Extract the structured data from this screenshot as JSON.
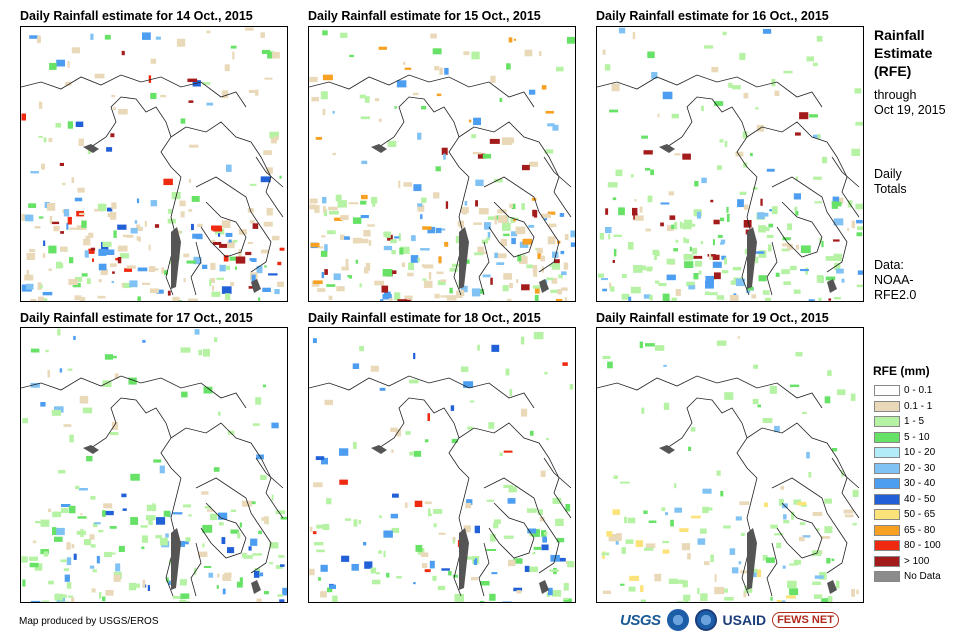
{
  "panels": [
    {
      "title": "Daily Rainfall estimate for 14 Oct., 2015"
    },
    {
      "title": "Daily Rainfall estimate for 15 Oct., 2015"
    },
    {
      "title": "Daily Rainfall estimate for 16 Oct., 2015"
    },
    {
      "title": "Daily Rainfall estimate for 17 Oct., 2015"
    },
    {
      "title": "Daily Rainfall estimate for 18 Oct., 2015"
    },
    {
      "title": "Daily Rainfall estimate for 19 Oct., 2015"
    }
  ],
  "sidebar": {
    "title_line1": "Rainfall",
    "title_line2": "Estimate",
    "title_line3": "(RFE)",
    "through_line1": "through",
    "through_line2": "Oct 19, 2015",
    "daily_line1": "Daily",
    "daily_line2": "Totals",
    "data_line1": "Data:",
    "data_line2": "NOAA-",
    "data_line3": "RFE2.0"
  },
  "legend": {
    "title": "RFE (mm)",
    "items": [
      {
        "label": "0 - 0.1",
        "color": "#ffffff"
      },
      {
        "label": "0.1 - 1",
        "color": "#e9d9b9"
      },
      {
        "label": "1 - 5",
        "color": "#b6f2a3"
      },
      {
        "label": "5 - 10",
        "color": "#68e167"
      },
      {
        "label": "10 - 20",
        "color": "#b2ecf8"
      },
      {
        "label": "20 - 30",
        "color": "#7fc2f3"
      },
      {
        "label": "30 - 40",
        "color": "#4d9ef0"
      },
      {
        "label": "40 - 50",
        "color": "#2260d8"
      },
      {
        "label": "50 - 65",
        "color": "#fbe37a"
      },
      {
        "label": "65 - 80",
        "color": "#f7a022"
      },
      {
        "label": "80 - 100",
        "color": "#ef2a10"
      },
      {
        "label": "> 100",
        "color": "#a41b1b"
      },
      {
        "label": "No Data",
        "color": "#8c8c8c"
      }
    ]
  },
  "footer": {
    "credit": "Map produced by USGS/EROS",
    "logo_usgs": "USGS",
    "logo_usaid": "USAID",
    "logo_fews": "FEWS NET"
  }
}
